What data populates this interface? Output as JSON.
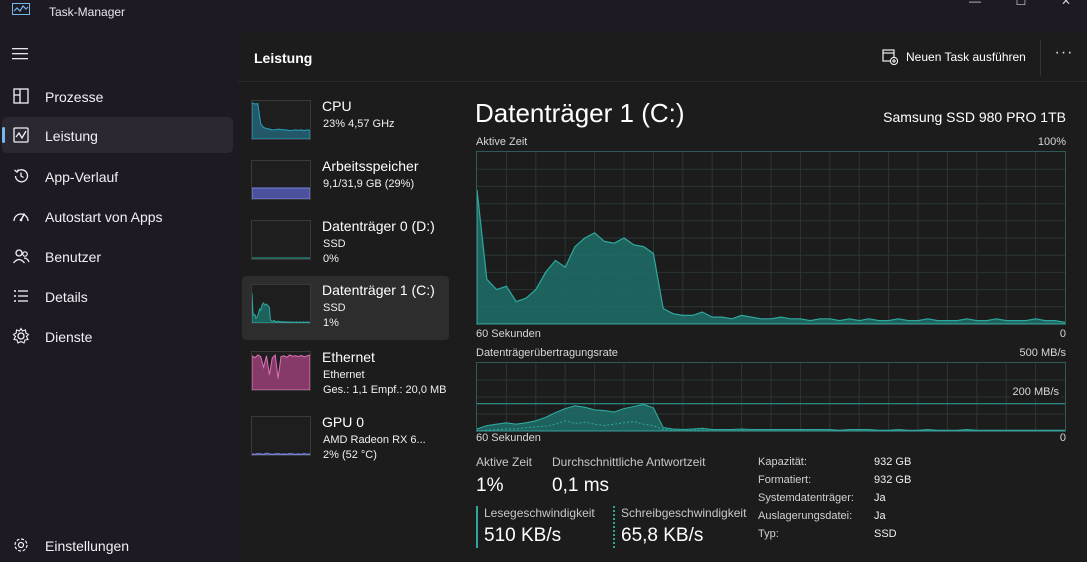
{
  "window": {
    "title": "Task-Manager",
    "controls": [
      "—",
      "☐",
      "✕"
    ]
  },
  "nav": {
    "items": [
      {
        "label": "Prozesse",
        "icon": "processes-icon"
      },
      {
        "label": "Leistung",
        "icon": "performance-icon",
        "active": true
      },
      {
        "label": "App-Verlauf",
        "icon": "history-icon"
      },
      {
        "label": "Autostart von Apps",
        "icon": "startup-icon"
      },
      {
        "label": "Benutzer",
        "icon": "users-icon"
      },
      {
        "label": "Details",
        "icon": "details-icon"
      },
      {
        "label": "Dienste",
        "icon": "services-icon"
      }
    ],
    "settings_label": "Einstellungen"
  },
  "header": {
    "title": "Leistung",
    "run_task_label": "Neuen Task ausführen",
    "more_label": "···"
  },
  "devices": [
    {
      "name": "CPU",
      "line1": "23%  4,57 GHz",
      "line2": ""
    },
    {
      "name": "Arbeitsspeicher",
      "line1": "9,1/31,9 GB (29%)",
      "line2": ""
    },
    {
      "name": "Datenträger 0 (D:)",
      "line1": "SSD",
      "line2": "0%"
    },
    {
      "name": "Datenträger 1 (C:)",
      "line1": "SSD",
      "line2": "1%"
    },
    {
      "name": "Ethernet",
      "line1": "Ethernet",
      "line2": "Ges.: 1,1  Empf.: 20,0 MB"
    },
    {
      "name": "GPU 0",
      "line1": "AMD Radeon RX 6...",
      "line2": "2%  (52 °C)"
    }
  ],
  "detail": {
    "title": "Datenträger 1 (C:)",
    "model": "Samsung SSD 980 PRO 1TB",
    "graph1": {
      "label": "Aktive Zeit",
      "max_label": "100%",
      "time_label": "60 Sekunden",
      "min_label": "0",
      "values": [
        78,
        26,
        20,
        22,
        13,
        15,
        20,
        30,
        37,
        33,
        45,
        50,
        53,
        48,
        47,
        50,
        46,
        45,
        41,
        9,
        6,
        5,
        5,
        7,
        4,
        4,
        3,
        5,
        4,
        3,
        3,
        4,
        3,
        3,
        2,
        3,
        3,
        2,
        3,
        2,
        3,
        2,
        2,
        3,
        2,
        2,
        3,
        2,
        2,
        2,
        3,
        2,
        2,
        3,
        2,
        2,
        2,
        3,
        2,
        2,
        1
      ]
    },
    "graph2": {
      "label": "Datenträgerübertragungsrate",
      "max_label": "500 MB/s",
      "line_label": "200 MB/s",
      "time_label": "60 Sekunden",
      "min_label": "0",
      "line_fraction": 0.4,
      "read_values": [
        0.03,
        0.08,
        0.1,
        0.12,
        0.1,
        0.12,
        0.15,
        0.2,
        0.27,
        0.33,
        0.37,
        0.35,
        0.31,
        0.3,
        0.28,
        0.33,
        0.36,
        0.39,
        0.34,
        0.05,
        0.03,
        0.02,
        0.03,
        0.04,
        0.02,
        0.02,
        0.02,
        0.03,
        0.02,
        0.02,
        0.02,
        0.02,
        0.02,
        0.02,
        0.02,
        0.02,
        0.02,
        0.01,
        0.02,
        0.02,
        0.02,
        0.01,
        0.01,
        0.02,
        0.01,
        0.01,
        0.02,
        0.01,
        0.01,
        0.01,
        0.02,
        0.01,
        0.01,
        0.01,
        0.01,
        0.01,
        0.01,
        0.01,
        0.01,
        0.01,
        0.01
      ],
      "write_values": [
        0.0,
        0.01,
        0.02,
        0.03,
        0.03,
        0.05,
        0.06,
        0.07,
        0.1,
        0.15,
        0.11,
        0.13,
        0.1,
        0.08,
        0.1,
        0.12,
        0.14,
        0.1,
        0.08,
        0.02,
        0.01,
        0.0,
        0.01,
        0.01,
        0.0,
        0.0,
        0.0,
        0.01,
        0.0,
        0.0,
        0.0,
        0.0,
        0.0,
        0.0,
        0.0,
        0.0,
        0.0,
        0.0,
        0.0,
        0.0,
        0.0,
        0.0,
        0.0,
        0.0,
        0.0,
        0.0,
        0.0,
        0.0,
        0.0,
        0.0,
        0.0,
        0.0,
        0.0,
        0.0,
        0.0,
        0.0,
        0.0,
        0.0,
        0.0,
        0.0,
        0.0
      ]
    },
    "stats": {
      "active_time_label": "Aktive Zeit",
      "active_time_value": "1%",
      "response_label": "Durchschnittliche Antwortzeit",
      "response_value": "0,1 ms",
      "read_label": "Lesegeschwindigkeit",
      "read_value": "510 KB/s",
      "write_label": "Schreibgeschwindigkeit",
      "write_value": "65,8 KB/s"
    },
    "properties": [
      {
        "key": "Kapazität:",
        "value": "932 GB"
      },
      {
        "key": "Formatiert:",
        "value": "932 GB"
      },
      {
        "key": "Systemdatenträger:",
        "value": "Ja"
      },
      {
        "key": "Auslagerungsdatei:",
        "value": "Ja"
      },
      {
        "key": "Typ:",
        "value": "SSD"
      }
    ]
  },
  "colors": {
    "accent": "#2ea89e",
    "disk_fill": "#1f6f69",
    "nav_indicator": "#76b9ed",
    "cpu": "#27a0c0",
    "memory": "#5b63c7",
    "ethernet": "#c94d9c"
  }
}
